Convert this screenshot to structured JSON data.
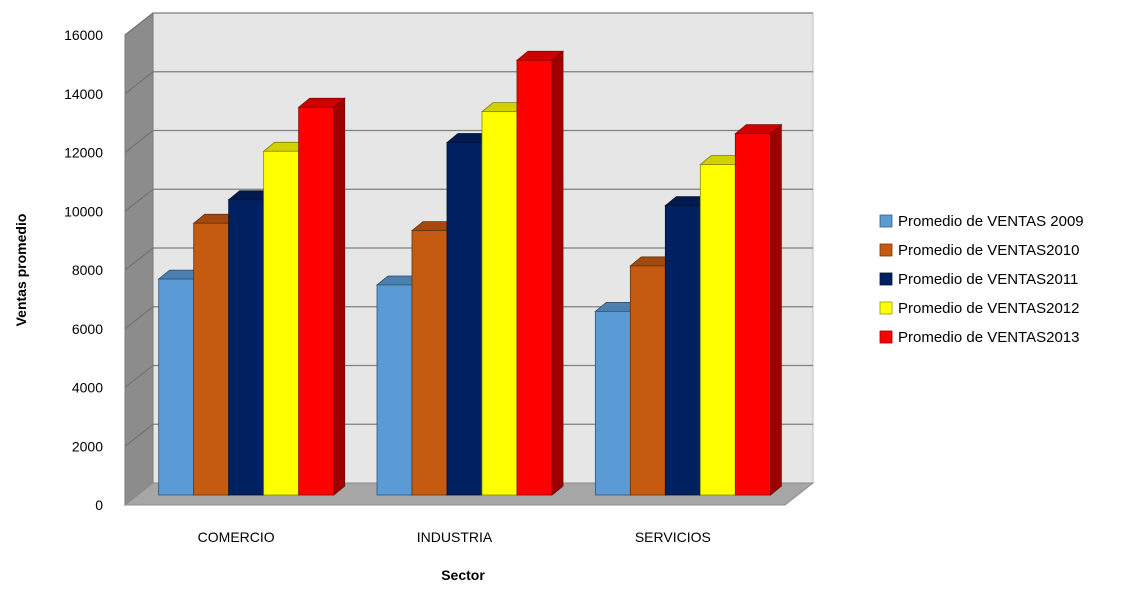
{
  "chart_data": {
    "type": "bar",
    "title": "",
    "xlabel": "Sector",
    "ylabel": "Ventas promedio",
    "ylim": [
      0,
      16000
    ],
    "yticks": [
      0,
      2000,
      4000,
      6000,
      8000,
      10000,
      12000,
      14000,
      16000
    ],
    "grid": true,
    "legend_position": "right",
    "categories": [
      "COMERCIO",
      "INDUSTRIA",
      "SERVICIOS"
    ],
    "series": [
      {
        "name": "Promedio de VENTAS  2009",
        "values": [
          7350,
          7150,
          6250
        ],
        "color": "#5b9bd5"
      },
      {
        "name": "Promedio de VENTAS2010",
        "values": [
          9250,
          9000,
          7800
        ],
        "color": "#c55a11"
      },
      {
        "name": "Promedio de VENTAS2011",
        "values": [
          10050,
          12000,
          9850
        ],
        "color": "#002060"
      },
      {
        "name": "Promedio de VENTAS2012",
        "values": [
          11700,
          13050,
          11250
        ],
        "color": "#ffff00"
      },
      {
        "name": "Promedio de VENTAS2013",
        "values": [
          13200,
          14800,
          12300
        ],
        "color": "#ff0000"
      }
    ]
  }
}
